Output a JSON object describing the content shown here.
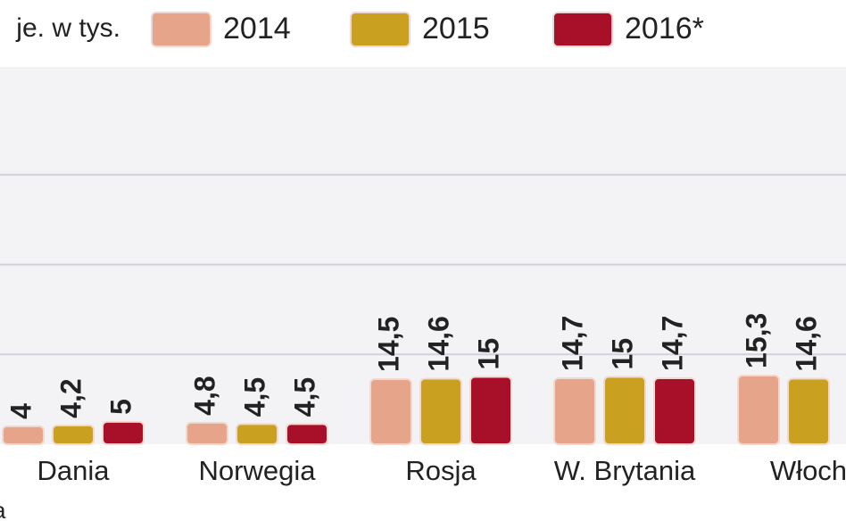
{
  "chart_data": {
    "type": "bar",
    "subtitle": "je. w tys.",
    "source": "a",
    "categories": [
      "Dania",
      "Norwegia",
      "Rosja",
      "W. Brytania",
      "Włoch"
    ],
    "series": [
      {
        "name": "2014",
        "color": "#e6a58b",
        "values": [
          4,
          4.8,
          14.5,
          14.7,
          15.3
        ],
        "value_labels": [
          "4",
          "4,8",
          "14,5",
          "14,7",
          "15,3"
        ]
      },
      {
        "name": "2015",
        "color": "#c9a020",
        "values": [
          4.2,
          4.5,
          14.6,
          15,
          14.6
        ],
        "value_labels": [
          "4,2",
          "4,5",
          "14,6",
          "15",
          "14,6"
        ]
      },
      {
        "name": "2016*",
        "color": "#a8102a",
        "values": [
          5,
          4.5,
          15,
          14.7,
          null
        ],
        "value_labels": [
          "5",
          "4,5",
          "15",
          "14,7",
          null
        ]
      }
    ],
    "ylim": [
      0,
      84
    ],
    "yticks": [
      20,
      40,
      60
    ],
    "grid": true
  }
}
